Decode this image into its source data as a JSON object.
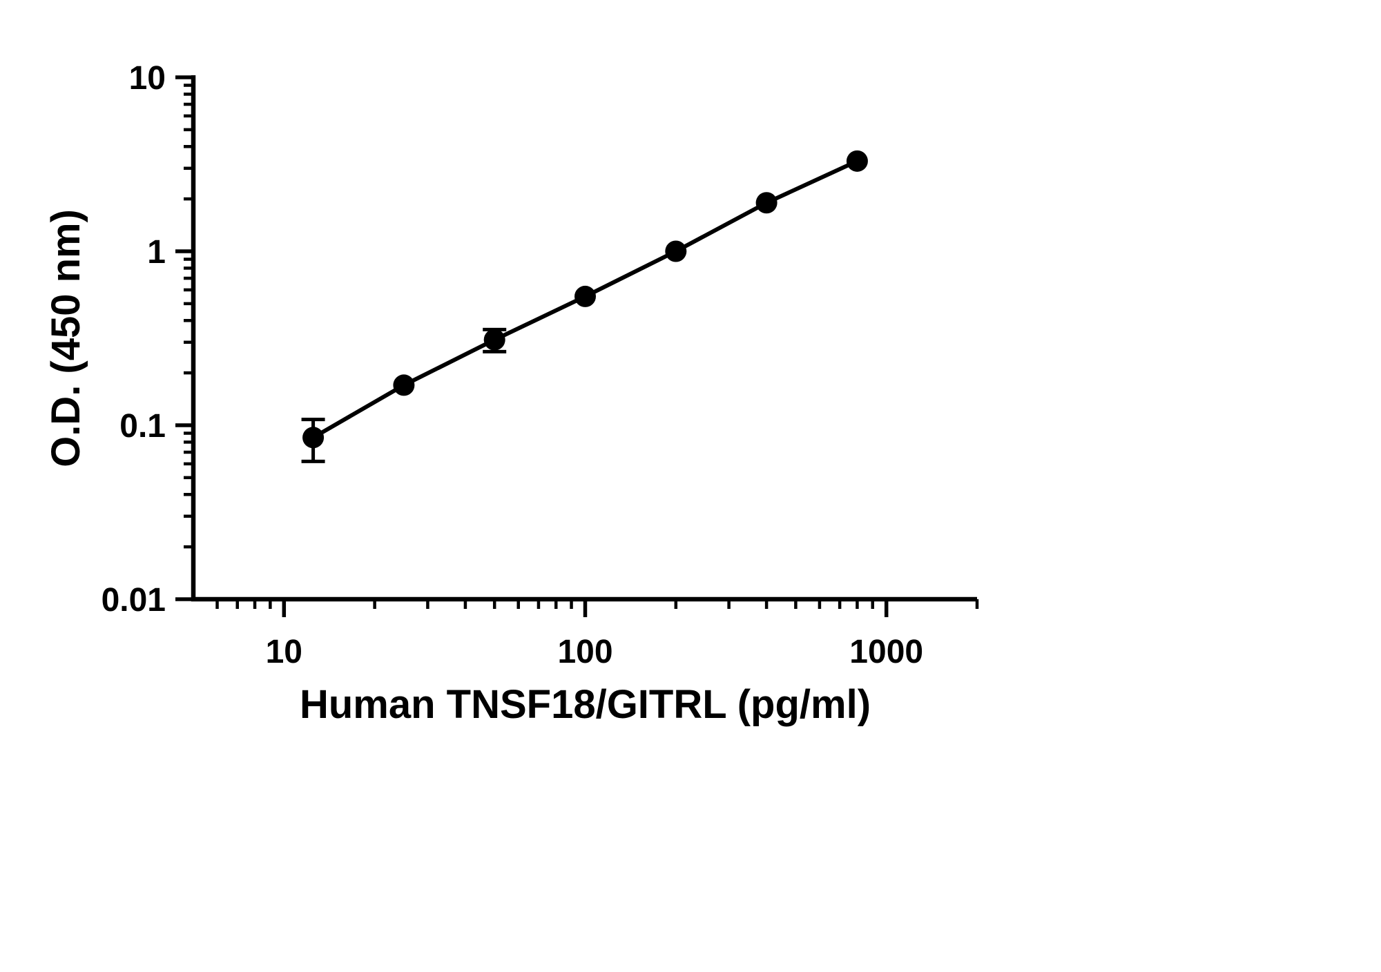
{
  "chart_data": {
    "type": "scatter",
    "subtype": "line-with-markers",
    "title": "",
    "xlabel": "Human TNSF18/GITRL (pg/ml)",
    "ylabel": "O.D. (450 nm)",
    "x": [
      12.5,
      25,
      50,
      100,
      200,
      400,
      800
    ],
    "y": [
      0.085,
      0.17,
      0.31,
      0.55,
      1.0,
      1.9,
      3.3
    ],
    "y_err": [
      0.023,
      0,
      0.045,
      0,
      0,
      0,
      0
    ],
    "xscale": "log",
    "yscale": "log",
    "xlim": [
      5,
      2000
    ],
    "ylim": [
      0.01,
      10
    ],
    "x_major_ticks": [
      10,
      100,
      1000
    ],
    "y_major_ticks": [
      0.01,
      0.1,
      1,
      10
    ],
    "x_tick_labels": [
      "10",
      "100",
      "1000"
    ],
    "y_tick_labels": [
      "0.01",
      "0.1",
      "1",
      "10"
    ],
    "grid": false,
    "legend": null,
    "marker_color": "#000000",
    "line_color": "#000000",
    "axis_color": "#000000",
    "background_color": "#ffffff"
  }
}
